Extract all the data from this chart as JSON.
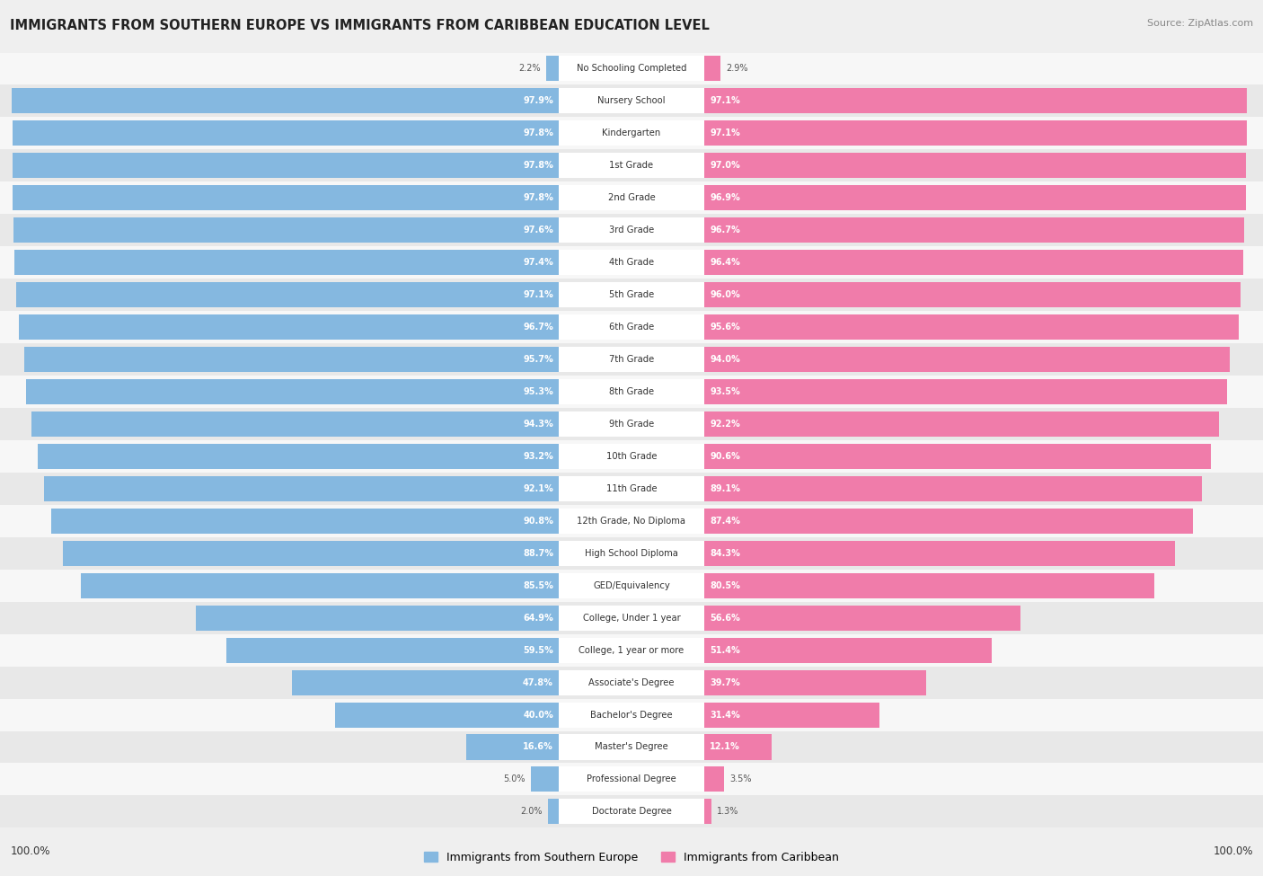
{
  "title": "IMMIGRANTS FROM SOUTHERN EUROPE VS IMMIGRANTS FROM CARIBBEAN EDUCATION LEVEL",
  "source": "Source: ZipAtlas.com",
  "categories": [
    "No Schooling Completed",
    "Nursery School",
    "Kindergarten",
    "1st Grade",
    "2nd Grade",
    "3rd Grade",
    "4th Grade",
    "5th Grade",
    "6th Grade",
    "7th Grade",
    "8th Grade",
    "9th Grade",
    "10th Grade",
    "11th Grade",
    "12th Grade, No Diploma",
    "High School Diploma",
    "GED/Equivalency",
    "College, Under 1 year",
    "College, 1 year or more",
    "Associate's Degree",
    "Bachelor's Degree",
    "Master's Degree",
    "Professional Degree",
    "Doctorate Degree"
  ],
  "southern_europe": [
    2.2,
    97.9,
    97.8,
    97.8,
    97.8,
    97.6,
    97.4,
    97.1,
    96.7,
    95.7,
    95.3,
    94.3,
    93.2,
    92.1,
    90.8,
    88.7,
    85.5,
    64.9,
    59.5,
    47.8,
    40.0,
    16.6,
    5.0,
    2.0
  ],
  "caribbean": [
    2.9,
    97.1,
    97.1,
    97.0,
    96.9,
    96.7,
    96.4,
    96.0,
    95.6,
    94.0,
    93.5,
    92.2,
    90.6,
    89.1,
    87.4,
    84.3,
    80.5,
    56.6,
    51.4,
    39.7,
    31.4,
    12.1,
    3.5,
    1.3
  ],
  "blue_color": "#85b8e0",
  "pink_color": "#f07caa",
  "bg_color": "#efefef",
  "row_bg_even": "#f7f7f7",
  "row_bg_odd": "#e8e8e8",
  "legend_blue": "Immigrants from Southern Europe",
  "legend_pink": "Immigrants from Caribbean",
  "left_label": "100.0%",
  "right_label": "100.0%",
  "label_color_inside": "#ffffff",
  "label_color_outside": "#555555",
  "center_label_bg": "#ffffff",
  "title_color": "#222222",
  "source_color": "#888888"
}
